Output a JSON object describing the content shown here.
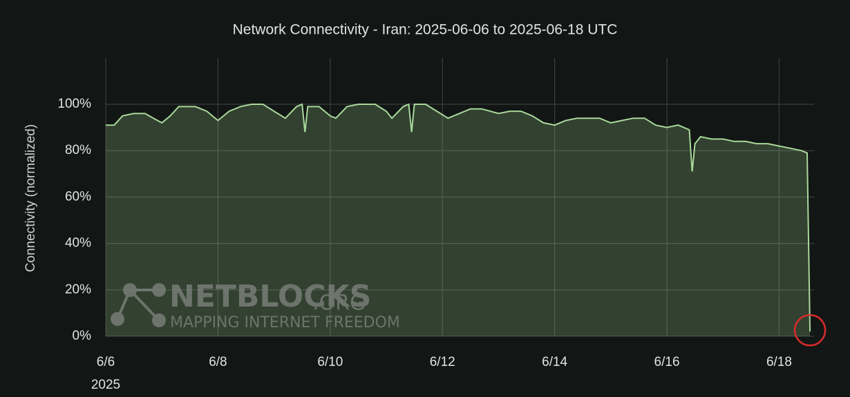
{
  "chart_data": {
    "type": "area",
    "title": "Network Connectivity - Iran: 2025-06-06 to 2025-06-18 UTC",
    "y_label": "Connectivity (normalized)",
    "year_label": "2025",
    "watermark": {
      "brand": "NETBLOCKS",
      "domain": ".ORG",
      "tagline": "MAPPING INTERNET FREEDOM"
    },
    "x": [
      6,
      6.15,
      6.3,
      6.5,
      6.7,
      6.85,
      7.0,
      7.15,
      7.3,
      7.6,
      7.8,
      8.0,
      8.2,
      8.4,
      8.6,
      8.8,
      9.0,
      9.2,
      9.4,
      9.5,
      9.55,
      9.6,
      9.8,
      10.0,
      10.1,
      10.3,
      10.5,
      10.8,
      11.0,
      11.1,
      11.3,
      11.4,
      11.45,
      11.5,
      11.7,
      11.9,
      12.1,
      12.3,
      12.5,
      12.7,
      13.0,
      13.2,
      13.4,
      13.6,
      13.8,
      14.0,
      14.2,
      14.4,
      14.6,
      14.8,
      15.0,
      15.2,
      15.4,
      15.6,
      15.8,
      16.0,
      16.2,
      16.4,
      16.45,
      16.5,
      16.6,
      16.8,
      17.0,
      17.2,
      17.4,
      17.6,
      17.8,
      18.0,
      18.2,
      18.4,
      18.5,
      18.55
    ],
    "values": [
      91,
      91,
      95,
      96,
      96,
      94,
      92,
      95,
      99,
      99,
      97,
      93,
      97,
      99,
      100,
      100,
      97,
      94,
      99,
      100,
      88,
      99,
      99,
      95,
      94,
      99,
      100,
      100,
      97,
      94,
      99,
      100,
      88,
      100,
      100,
      97,
      94,
      96,
      98,
      98,
      96,
      97,
      97,
      95,
      92,
      91,
      93,
      94,
      94,
      94,
      92,
      93,
      94,
      94,
      91,
      90,
      91,
      89,
      71,
      83,
      86,
      85,
      85,
      84,
      84,
      83,
      83,
      82,
      81,
      80,
      79,
      2
    ],
    "color": "#a9d99b",
    "xlim": [
      6,
      18.63
    ],
    "xticks": [
      {
        "value": 6,
        "label": "6/6"
      },
      {
        "value": 8,
        "label": "6/8"
      },
      {
        "value": 10,
        "label": "6/10"
      },
      {
        "value": 12,
        "label": "6/12"
      },
      {
        "value": 14,
        "label": "6/14"
      },
      {
        "value": 16,
        "label": "6/16"
      },
      {
        "value": 18,
        "label": "6/18"
      }
    ],
    "ylim": [
      0,
      120
    ],
    "yticks": [
      {
        "value": 0,
        "label": "0%"
      },
      {
        "value": 20,
        "label": "20%"
      },
      {
        "value": 40,
        "label": "40%"
      },
      {
        "value": 60,
        "label": "60%"
      },
      {
        "value": 80,
        "label": "80%"
      },
      {
        "value": 100,
        "label": "100%"
      }
    ],
    "grid": true
  }
}
